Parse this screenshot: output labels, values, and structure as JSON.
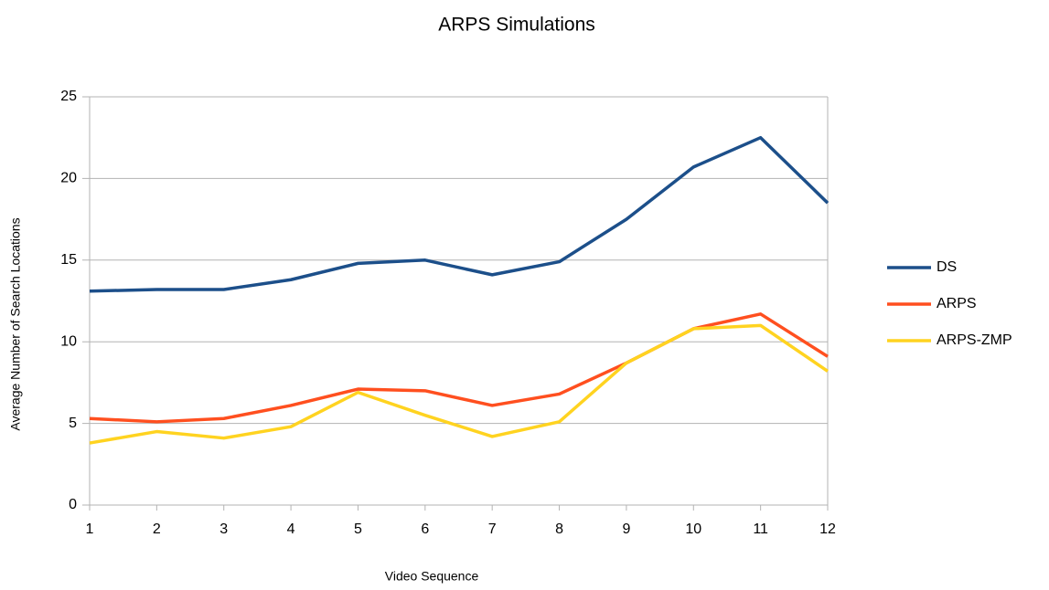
{
  "chart_data": {
    "type": "line",
    "title": "ARPS Simulations",
    "x_label": "Video Sequence",
    "y_label": "Average Number of Search Locations",
    "x": [
      1,
      2,
      3,
      4,
      5,
      6,
      7,
      8,
      9,
      10,
      11,
      12
    ],
    "series": [
      {
        "name": "DS",
        "color": "#1c4f8a",
        "values": [
          13.1,
          13.2,
          13.2,
          13.8,
          14.8,
          15.0,
          14.1,
          14.9,
          17.5,
          20.7,
          22.5,
          18.5
        ]
      },
      {
        "name": "ARPS",
        "color": "#ff4f1f",
        "values": [
          5.3,
          5.1,
          5.3,
          6.1,
          7.1,
          7.0,
          6.1,
          6.8,
          8.7,
          10.8,
          11.7,
          9.1
        ]
      },
      {
        "name": "ARPS-ZMP",
        "color": "#ffd320",
        "values": [
          3.8,
          4.5,
          4.1,
          4.8,
          6.9,
          5.5,
          4.2,
          5.1,
          8.7,
          10.8,
          11.0,
          8.2
        ]
      }
    ],
    "xlim": [
      1,
      12
    ],
    "xticks": [
      1,
      2,
      3,
      4,
      5,
      6,
      7,
      8,
      9,
      10,
      11,
      12
    ],
    "ylim": [
      0,
      25
    ],
    "yticks": [
      0,
      5,
      10,
      15,
      20,
      25
    ],
    "grid": true,
    "legend": "right"
  }
}
